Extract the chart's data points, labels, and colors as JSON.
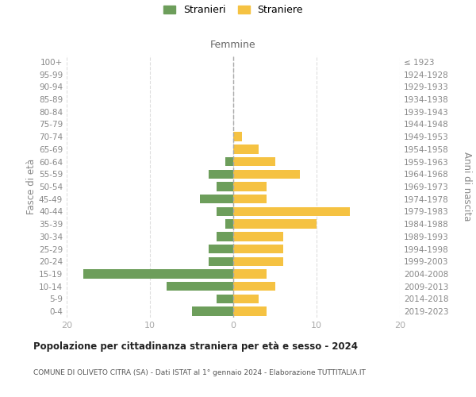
{
  "age_groups": [
    "0-4",
    "5-9",
    "10-14",
    "15-19",
    "20-24",
    "25-29",
    "30-34",
    "35-39",
    "40-44",
    "45-49",
    "50-54",
    "55-59",
    "60-64",
    "65-69",
    "70-74",
    "75-79",
    "80-84",
    "85-89",
    "90-94",
    "95-99",
    "100+"
  ],
  "birth_years": [
    "2019-2023",
    "2014-2018",
    "2009-2013",
    "2004-2008",
    "1999-2003",
    "1994-1998",
    "1989-1993",
    "1984-1988",
    "1979-1983",
    "1974-1978",
    "1969-1973",
    "1964-1968",
    "1959-1963",
    "1954-1958",
    "1949-1953",
    "1944-1948",
    "1939-1943",
    "1934-1938",
    "1929-1933",
    "1924-1928",
    "≤ 1923"
  ],
  "males": [
    5,
    2,
    8,
    18,
    3,
    3,
    2,
    1,
    2,
    4,
    2,
    3,
    1,
    0,
    0,
    0,
    0,
    0,
    0,
    0,
    0
  ],
  "females": [
    4,
    3,
    5,
    4,
    6,
    6,
    6,
    10,
    14,
    4,
    4,
    8,
    5,
    3,
    1,
    0,
    0,
    0,
    0,
    0,
    0
  ],
  "male_color": "#6d9e5b",
  "female_color": "#f5c242",
  "male_label": "Stranieri",
  "female_label": "Straniere",
  "title": "Popolazione per cittadinanza straniera per età e sesso - 2024",
  "subtitle": "COMUNE DI OLIVETO CITRA (SA) - Dati ISTAT al 1° gennaio 2024 - Elaborazione TUTTITALIA.IT",
  "ylabel_left": "Fasce di età",
  "ylabel_right": "Anni di nascita",
  "xlabel_right": "Femmine",
  "xlim": 20,
  "background_color": "#ffffff",
  "bar_height": 0.72,
  "grid_color": "#dddddd",
  "center_line_color": "#aaaaaa",
  "tick_color": "#aaaaaa",
  "label_color": "#888888",
  "header_color": "#666666"
}
